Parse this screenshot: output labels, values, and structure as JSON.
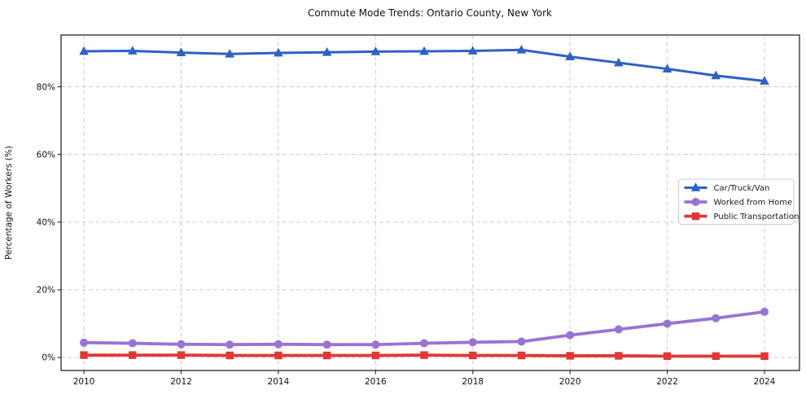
{
  "chart_data": {
    "type": "line",
    "title": "Commute Mode Trends: Ontario County, New York",
    "xlabel": "",
    "ylabel": "Percentage of Workers (%)",
    "x": [
      2010,
      2011,
      2012,
      2013,
      2014,
      2015,
      2016,
      2017,
      2018,
      2019,
      2020,
      2021,
      2022,
      2023,
      2024
    ],
    "x_tick_labels": [
      "2010",
      "2012",
      "2014",
      "2016",
      "2018",
      "2020",
      "2022",
      "2024"
    ],
    "x_tick_values": [
      2010,
      2012,
      2014,
      2016,
      2018,
      2020,
      2022,
      2024
    ],
    "y_ticks": [
      0,
      20,
      40,
      60,
      80
    ],
    "y_tick_suffix": "%",
    "xlim": [
      2009.53,
      2024.72
    ],
    "ylim": [
      -3.85,
      95.3
    ],
    "grid": "dashed-both",
    "legend_position": "middle-right",
    "series": [
      {
        "name": "Car/Truck/Van",
        "marker": "triangle",
        "color": "#2d61c6",
        "values": [
          90.5,
          90.6,
          90.1,
          89.7,
          90.0,
          90.2,
          90.4,
          90.5,
          90.6,
          90.9,
          88.9,
          87.1,
          85.3,
          83.3,
          81.7
        ]
      },
      {
        "name": "Worked from Home",
        "marker": "circle",
        "color": "#9873d6",
        "values": [
          4.4,
          4.2,
          3.9,
          3.8,
          3.9,
          3.8,
          3.8,
          4.2,
          4.5,
          4.7,
          6.6,
          8.3,
          10.0,
          11.6,
          13.5
        ]
      },
      {
        "name": "Public Transportation",
        "marker": "square",
        "color": "#e23737",
        "values": [
          0.7,
          0.7,
          0.7,
          0.6,
          0.6,
          0.6,
          0.6,
          0.7,
          0.6,
          0.6,
          0.5,
          0.5,
          0.4,
          0.4,
          0.4
        ]
      }
    ],
    "colors": {
      "grid": "#cccccc",
      "spine": "#262626",
      "text": "#111111",
      "legend_border": "#cccccc",
      "background": "#ffffff"
    }
  }
}
